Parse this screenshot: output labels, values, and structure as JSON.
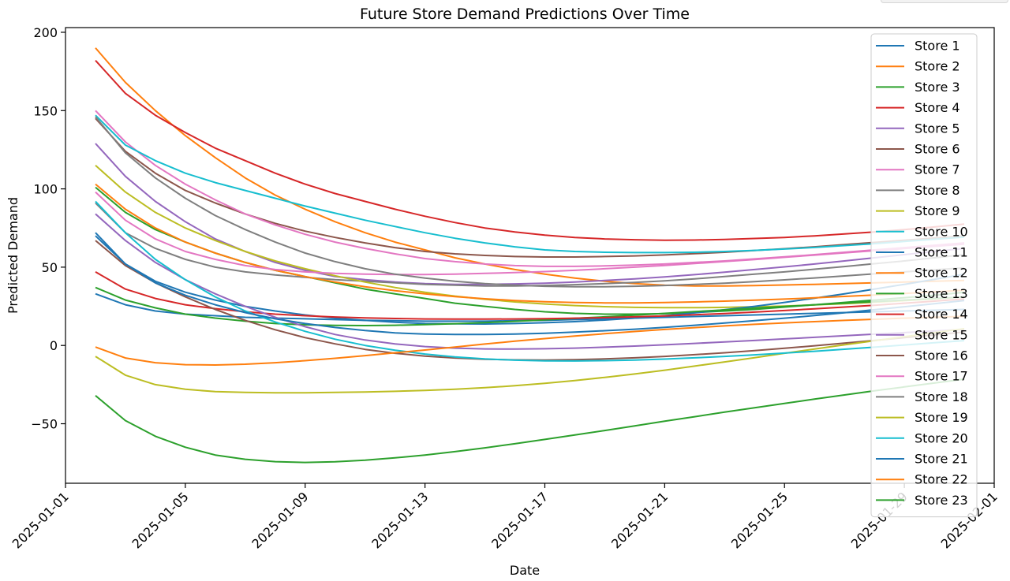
{
  "chart_data": {
    "type": "line",
    "title": "Future Store Demand Predictions Over Time",
    "xlabel": "Date",
    "ylabel": "Predicted Demand",
    "x_dates": [
      "2025-01-02",
      "2025-01-03",
      "2025-01-04",
      "2025-01-05",
      "2025-01-06",
      "2025-01-07",
      "2025-01-08",
      "2025-01-09",
      "2025-01-10",
      "2025-01-11",
      "2025-01-12",
      "2025-01-13",
      "2025-01-14",
      "2025-01-15",
      "2025-01-16",
      "2025-01-17",
      "2025-01-18",
      "2025-01-19",
      "2025-01-20",
      "2025-01-21",
      "2025-01-22",
      "2025-01-23",
      "2025-01-24",
      "2025-01-25",
      "2025-01-26",
      "2025-01-27",
      "2025-01-28",
      "2025-01-29",
      "2025-01-30",
      "2025-01-31"
    ],
    "xlim": [
      "2025-01-01T00:00",
      "2025-02-01"
    ],
    "ylim": [
      -88,
      203
    ],
    "x_ticks": [
      "2025-01-01",
      "2025-01-05",
      "2025-01-09",
      "2025-01-13",
      "2025-01-17",
      "2025-01-21",
      "2025-01-25",
      "2025-01-29",
      "2025-02-01"
    ],
    "y_ticks": [
      200,
      150,
      100,
      50,
      0,
      -50
    ],
    "y_tick_labels": [
      "200",
      "150",
      "100",
      "50",
      "0",
      "−50"
    ],
    "grid": false,
    "legend_placement": "right",
    "series": [
      {
        "name": "Store 1",
        "color": "#1f77b4",
        "values": [
          33,
          26,
          22,
          20,
          19,
          18,
          17.5,
          17,
          16.5,
          16,
          15.8,
          15.5,
          15.5,
          15.5,
          15.8,
          16,
          16.5,
          17,
          17.5,
          18,
          18.5,
          19,
          19.5,
          20,
          20.5,
          21,
          21.5,
          22,
          22.5,
          23
        ]
      },
      {
        "name": "Store 2",
        "color": "#ff7f0e",
        "values": [
          190,
          168,
          150,
          134,
          120,
          107,
          96,
          87,
          79,
          72,
          66,
          61,
          56,
          52,
          48.5,
          45.5,
          43,
          41,
          39.5,
          38.5,
          38,
          38,
          38.2,
          38.6,
          39,
          39.5,
          40,
          40.5,
          41,
          41.5
        ]
      },
      {
        "name": "Store 3",
        "color": "#2ca02c",
        "values": [
          101,
          85,
          74,
          66,
          59,
          53,
          48,
          44,
          40,
          36,
          33,
          30,
          27,
          25,
          23,
          21.5,
          20.5,
          20,
          20,
          20.3,
          21,
          22,
          23,
          24.5,
          26,
          27.5,
          29,
          30.5,
          32,
          34
        ]
      },
      {
        "name": "Store 4",
        "color": "#d62728",
        "values": [
          182,
          161,
          147,
          136,
          126,
          118,
          110,
          103,
          97,
          92,
          87,
          82.5,
          78.5,
          75,
          72.5,
          70.5,
          69,
          68,
          67.5,
          67.2,
          67.3,
          67.7,
          68.3,
          69,
          70,
          71.2,
          72.5,
          74,
          75.7,
          77.5
        ]
      },
      {
        "name": "Store 5",
        "color": "#9467bd",
        "values": [
          129,
          108,
          92,
          79,
          68,
          60,
          53,
          48,
          44,
          42,
          40.5,
          39.5,
          39,
          39,
          39.3,
          39.8,
          40.5,
          41.5,
          42.5,
          43.8,
          45.2,
          46.8,
          48.5,
          50.2,
          52,
          54,
          56,
          58,
          60,
          62
        ]
      },
      {
        "name": "Store 6",
        "color": "#8c564b",
        "values": [
          145,
          124,
          110,
          99,
          91,
          84,
          78,
          73,
          69,
          65.5,
          62.5,
          60,
          58.5,
          57.5,
          56.8,
          56.5,
          56.5,
          56.8,
          57.2,
          57.8,
          58.6,
          59.5,
          60.6,
          61.8,
          63,
          64.4,
          65.8,
          67.2,
          68.6,
          70
        ]
      },
      {
        "name": "Store 7",
        "color": "#e377c2",
        "values": [
          150,
          130,
          115,
          103,
          93,
          84,
          77,
          71,
          66,
          62,
          58.5,
          55.5,
          53.5,
          52,
          51,
          50.5,
          50.5,
          50.8,
          51.3,
          52,
          53,
          54,
          55.3,
          56.6,
          58,
          59.5,
          61,
          62.5,
          64,
          65.5
        ]
      },
      {
        "name": "Store 8",
        "color": "#7f7f7f",
        "values": [
          91,
          72,
          62,
          55,
          50,
          47,
          45,
          43.5,
          42,
          41,
          40,
          39,
          38.5,
          38,
          38,
          38.3,
          38.8,
          39.5,
          40.3,
          41.3,
          42.5,
          44,
          45.5,
          47,
          48.7,
          50.4,
          52.2,
          54,
          56,
          58
        ]
      },
      {
        "name": "Store 9",
        "color": "#bcbd22",
        "values": [
          115,
          98,
          85,
          75,
          67,
          60,
          54,
          49,
          44.5,
          40.5,
          37,
          34,
          31.5,
          29.5,
          27.8,
          26.5,
          25.5,
          24.8,
          24.3,
          24.1,
          24.1,
          24.3,
          24.7,
          25.2,
          25.9,
          26.7,
          27.6,
          28.6,
          29.7,
          31
        ]
      },
      {
        "name": "Store 10",
        "color": "#17becf",
        "values": [
          147,
          128,
          118,
          110,
          104,
          99,
          94,
          89,
          84.5,
          80,
          76,
          72,
          68.5,
          65.5,
          63,
          61,
          60,
          59.5,
          59.3,
          59.3,
          59.5,
          60,
          60.7,
          61.6,
          62.6,
          63.8,
          65,
          66.4,
          67.8,
          69.2
        ]
      },
      {
        "name": "Store 11",
        "color": "#1f77b4",
        "values": [
          70,
          52,
          41,
          34,
          29,
          25,
          22,
          19.5,
          17.5,
          16,
          14.8,
          14,
          13.8,
          13.7,
          14,
          14.5,
          15.2,
          16.2,
          17.5,
          19,
          20.8,
          22.8,
          25,
          27.5,
          30.2,
          33,
          36,
          39,
          42.2,
          45.5
        ]
      },
      {
        "name": "Store 12",
        "color": "#ff7f0e",
        "values": [
          103,
          87,
          75,
          66,
          59,
          53,
          48,
          44,
          40.5,
          37.5,
          35,
          33,
          31.2,
          29.8,
          28.7,
          27.9,
          27.4,
          27.2,
          27.2,
          27.4,
          27.8,
          28.3,
          28.9,
          29.6,
          30.4,
          31.3,
          32.2,
          33.2,
          34.2,
          35.3
        ]
      },
      {
        "name": "Store 13",
        "color": "#2ca02c",
        "values": [
          37,
          29,
          24,
          20,
          17.5,
          15.5,
          14,
          13.2,
          12.8,
          12.7,
          12.9,
          13.3,
          13.9,
          14.6,
          15.4,
          16.3,
          17.3,
          18.3,
          19.4,
          20.5,
          21.6,
          22.7,
          23.8,
          24.9,
          26,
          27,
          28,
          29,
          30,
          31
        ]
      },
      {
        "name": "Store 14",
        "color": "#d62728",
        "values": [
          47,
          36,
          30,
          26,
          23.5,
          21.5,
          20,
          19,
          18.2,
          17.6,
          17.2,
          16.9,
          16.8,
          16.8,
          16.9,
          17.1,
          17.4,
          17.8,
          18.3,
          18.9,
          19.6,
          20.4,
          21.3,
          22.3,
          23.4,
          24.5,
          25.7,
          27,
          28.3,
          29.7
        ]
      },
      {
        "name": "Store 15",
        "color": "#9467bd",
        "values": [
          84,
          67,
          53,
          42,
          33,
          25,
          18,
          12,
          7,
          3.5,
          1,
          -0.7,
          -1.7,
          -2.2,
          -2.3,
          -2.1,
          -1.7,
          -1.1,
          -0.4,
          0.4,
          1.3,
          2.2,
          3.2,
          4.2,
          5.2,
          6.2,
          7.2,
          8.2,
          9.2,
          10.2
        ]
      },
      {
        "name": "Store 16",
        "color": "#8c564b",
        "values": [
          67,
          51,
          40,
          31,
          23,
          16,
          10,
          5,
          1,
          -2.5,
          -5,
          -6.8,
          -8,
          -8.8,
          -9.2,
          -9.3,
          -9.1,
          -8.6,
          -7.9,
          -7,
          -5.9,
          -4.7,
          -3.3,
          -1.8,
          -0.2,
          1.5,
          3.2,
          5,
          6.8,
          8.6
        ]
      },
      {
        "name": "Store 17",
        "color": "#e377c2",
        "values": [
          98,
          80,
          68,
          60,
          55,
          51,
          48.5,
          47,
          46,
          45.5,
          45.3,
          45.3,
          45.5,
          46,
          46.5,
          47.2,
          48,
          49,
          50,
          51.1,
          52.3,
          53.6,
          54.9,
          56.3,
          57.7,
          59.1,
          60.5,
          61.9,
          63.3,
          64.7
        ]
      },
      {
        "name": "Store 18",
        "color": "#7f7f7f",
        "values": [
          146,
          123,
          107,
          94,
          83,
          74,
          66,
          59,
          53.5,
          49,
          45.5,
          43,
          41,
          39.5,
          38.5,
          37.8,
          37.5,
          37.5,
          37.8,
          38.3,
          39,
          39.8,
          40.8,
          41.9,
          43.1,
          44.4,
          45.7,
          47,
          48.3,
          49.6
        ]
      },
      {
        "name": "Store 19",
        "color": "#bcbd22",
        "values": [
          -7,
          -19,
          -25,
          -28,
          -29.5,
          -30,
          -30.2,
          -30.2,
          -30,
          -29.7,
          -29.3,
          -28.7,
          -28,
          -27,
          -25.7,
          -24.2,
          -22.4,
          -20.4,
          -18.2,
          -15.8,
          -13.2,
          -10.5,
          -7.8,
          -5,
          -2.3,
          0.4,
          3,
          5.6,
          8.2,
          10.7
        ]
      },
      {
        "name": "Store 20",
        "color": "#17becf",
        "values": [
          92,
          72,
          55,
          42,
          31,
          22,
          15,
          9,
          4,
          0,
          -3,
          -5.5,
          -7.3,
          -8.6,
          -9.4,
          -9.8,
          -9.9,
          -9.7,
          -9.3,
          -8.7,
          -7.9,
          -7,
          -6,
          -4.9,
          -3.7,
          -2.4,
          -1.1,
          0.3,
          1.7,
          3.1
        ]
      },
      {
        "name": "Store 21",
        "color": "#1f77b4",
        "values": [
          72,
          52,
          40,
          32,
          26,
          21,
          17,
          14,
          11.5,
          9.5,
          8,
          7.3,
          7,
          7,
          7.3,
          7.8,
          8.5,
          9.4,
          10.4,
          11.6,
          12.9,
          14.3,
          15.8,
          17.4,
          19.1,
          20.9,
          22.8,
          24.7,
          26.7,
          28.7
        ]
      },
      {
        "name": "Store 22",
        "color": "#ff7f0e",
        "values": [
          -1,
          -8,
          -11,
          -12.3,
          -12.5,
          -12,
          -11,
          -9.7,
          -8.2,
          -6.5,
          -4.7,
          -2.9,
          -1,
          0.9,
          2.7,
          4.4,
          6,
          7.5,
          8.9,
          10.2,
          11.4,
          12.5,
          13.5,
          14.4,
          15.2,
          16,
          16.7,
          17.4,
          18,
          18.6
        ]
      },
      {
        "name": "Store 23",
        "color": "#2ca02c",
        "values": [
          -32,
          -48,
          -58,
          -65,
          -70,
          -72.7,
          -74.2,
          -74.7,
          -74.3,
          -73.3,
          -71.8,
          -70,
          -67.8,
          -65.4,
          -62.8,
          -60,
          -57.2,
          -54.3,
          -51.4,
          -48.4,
          -45.5,
          -42.6,
          -39.8,
          -37,
          -34.3,
          -31.6,
          -29,
          -26.5,
          -24,
          -21.5
        ]
      }
    ]
  }
}
